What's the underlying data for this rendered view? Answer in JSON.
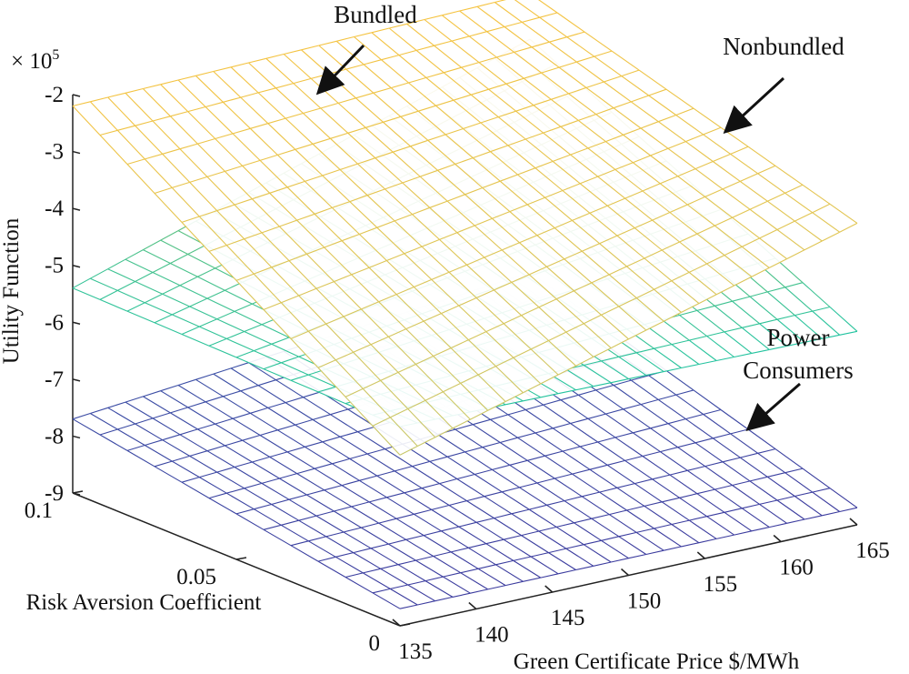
{
  "chart_data": {
    "type": "surface",
    "title": "",
    "xlabel": "Green Certificate Price $/MWh",
    "ylabel": "Risk Aversion Coefficient",
    "zlabel": "Utility Function",
    "z_scale": "× 10⁵",
    "z_scale_base": "× 10",
    "z_scale_exp": "5",
    "xlim": [
      135,
      165
    ],
    "ylim": [
      0,
      0.1
    ],
    "zlim": [
      -9,
      -2
    ],
    "x_ticks": [
      "135",
      "140",
      "145",
      "150",
      "155",
      "160",
      "165"
    ],
    "y_ticks": [
      "0",
      "0.05",
      "0.1"
    ],
    "z_ticks": [
      "-2",
      "-3",
      "-4",
      "-5",
      "-6",
      "-7",
      "-8",
      "-9"
    ],
    "series": [
      {
        "name": "Bundled",
        "color_low": "#c7c76a",
        "color_high": "#f5c340",
        "corners": {
          "x135_y0": -6.0,
          "x165_y0": -3.7,
          "x135_y0.1": -2.2,
          "x165_y0.1": -2.0
        }
      },
      {
        "name": "Nonbundled",
        "color_low": "#21c3a0",
        "color_high": "#f2bd3a",
        "corners": {
          "x135_y0": -5.5,
          "x165_y0": -5.6,
          "x135_y0.1": -5.4,
          "x165_y0.1": -2.8
        }
      },
      {
        "name": "Power Consumers",
        "color_low": "#3b3b9e",
        "color_high": "#3b57a8",
        "corners": {
          "x135_y0": -8.7,
          "x165_y0": -8.7,
          "x135_y0.1": -7.7,
          "x165_y0.1": -6.9
        }
      }
    ],
    "annotations": [
      {
        "label": "Bundled",
        "target": "Bundled"
      },
      {
        "label": "Nonbundled",
        "target": "Nonbundled"
      },
      {
        "label_lines": [
          "Power",
          "Consumers"
        ],
        "target": "Power Consumers"
      }
    ]
  }
}
